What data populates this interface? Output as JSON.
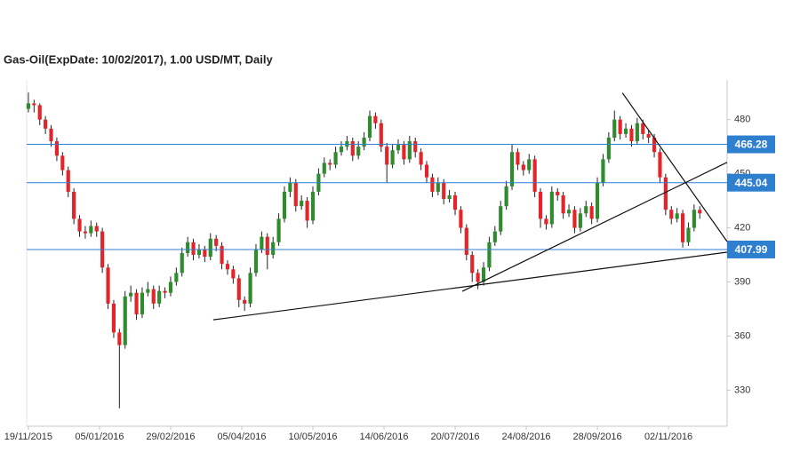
{
  "chart_data": {
    "type": "candlestick",
    "title": "Gas-Oil(ExpDate: 10/02/2017), 1.00 USD/MT, Daily",
    "up_color": "#2e8b2e",
    "down_color": "#e3242b",
    "ylim": [
      310,
      502
    ],
    "yticks": [
      330,
      360,
      390,
      420,
      450,
      480
    ],
    "xlim": [
      -0.3,
      122.8
    ],
    "xticks": [
      {
        "value": 0,
        "label": "19/11/2015"
      },
      {
        "value": 12.5,
        "label": "05/01/2016"
      },
      {
        "value": 25,
        "label": "29/02/2016"
      },
      {
        "value": 37.5,
        "label": "05/04/2016"
      },
      {
        "value": 50,
        "label": "10/05/2016"
      },
      {
        "value": 62.5,
        "label": "14/06/2016"
      },
      {
        "value": 75,
        "label": "20/07/2016"
      },
      {
        "value": 87.5,
        "label": "24/08/2016"
      },
      {
        "value": 100,
        "label": "28/09/2016"
      },
      {
        "value": 112.5,
        "label": "02/11/2016"
      }
    ],
    "levels": [
      466.28,
      445.04,
      407.99
    ],
    "level_color": "#2f7fcf",
    "trendlines": [
      {
        "start": [
          32.5,
          369
        ],
        "end": [
          122.8,
          406.5
        ]
      },
      {
        "start": [
          76.25,
          384.8
        ],
        "end": [
          122.8,
          456.3
        ]
      },
      {
        "start": [
          104.4,
          494.8
        ],
        "end": [
          122.8,
          412.4
        ]
      }
    ],
    "candles": [
      [
        486,
        495,
        484,
        489
      ],
      [
        489,
        491,
        484,
        488
      ],
      [
        488,
        489,
        477,
        480
      ],
      [
        480,
        482,
        472,
        475
      ],
      [
        475,
        477,
        465,
        468
      ],
      [
        468,
        470,
        457,
        460
      ],
      [
        460,
        462,
        449,
        452
      ],
      [
        452,
        454,
        437,
        440
      ],
      [
        440,
        442,
        422,
        425
      ],
      [
        425,
        427,
        415,
        418
      ],
      [
        418,
        421,
        414,
        417
      ],
      [
        417,
        424,
        415,
        421
      ],
      [
        421,
        423,
        415,
        418
      ],
      [
        418,
        420,
        395,
        398
      ],
      [
        398,
        400,
        375,
        378
      ],
      [
        378,
        380,
        359,
        362
      ],
      [
        362,
        364,
        320,
        355
      ],
      [
        355,
        385,
        353,
        382
      ],
      [
        382,
        388,
        379,
        384
      ],
      [
        384,
        386,
        369,
        372
      ],
      [
        372,
        387,
        370,
        384
      ],
      [
        384,
        390,
        382,
        386
      ],
      [
        386,
        388,
        375,
        378
      ],
      [
        378,
        388,
        376,
        385
      ],
      [
        385,
        387,
        381,
        384
      ],
      [
        384,
        393,
        382,
        390
      ],
      [
        390,
        398,
        388,
        395
      ],
      [
        395,
        409,
        393,
        406
      ],
      [
        406,
        415,
        404,
        412
      ],
      [
        412,
        414,
        402,
        405
      ],
      [
        405,
        411,
        403,
        408
      ],
      [
        408,
        410,
        401,
        404
      ],
      [
        404,
        417,
        402,
        414
      ],
      [
        414,
        416,
        407,
        410
      ],
      [
        410,
        412,
        397,
        400
      ],
      [
        400,
        402,
        394,
        397
      ],
      [
        397,
        399,
        389,
        392
      ],
      [
        392,
        394,
        376,
        380
      ],
      [
        380,
        382,
        374,
        378
      ],
      [
        378,
        398,
        376,
        395
      ],
      [
        395,
        411,
        393,
        408
      ],
      [
        408,
        418,
        406,
        415
      ],
      [
        415,
        417,
        397,
        405
      ],
      [
        405,
        415,
        403,
        412
      ],
      [
        412,
        428,
        410,
        425
      ],
      [
        425,
        443,
        423,
        440
      ],
      [
        440,
        448,
        437,
        445
      ],
      [
        445,
        447,
        429,
        432
      ],
      [
        432,
        438,
        430,
        435
      ],
      [
        435,
        437,
        420,
        424
      ],
      [
        424,
        443,
        422,
        440
      ],
      [
        440,
        453,
        438,
        450
      ],
      [
        450,
        459,
        448,
        456
      ],
      [
        456,
        458,
        452,
        455
      ],
      [
        455,
        465,
        453,
        462
      ],
      [
        462,
        468,
        460,
        465
      ],
      [
        465,
        471,
        463,
        468
      ],
      [
        468,
        470,
        457,
        460
      ],
      [
        460,
        468,
        458,
        465
      ],
      [
        465,
        473,
        463,
        470
      ],
      [
        470,
        485,
        468,
        482
      ],
      [
        482,
        484,
        475,
        478
      ],
      [
        478,
        480,
        462,
        465
      ],
      [
        465,
        467,
        445,
        455
      ],
      [
        455,
        466,
        453,
        463
      ],
      [
        463,
        469,
        461,
        466
      ],
      [
        466,
        468,
        455,
        458
      ],
      [
        458,
        471,
        456,
        468
      ],
      [
        468,
        470,
        459,
        462
      ],
      [
        462,
        464,
        452,
        455
      ],
      [
        455,
        457,
        445,
        448
      ],
      [
        448,
        450,
        437,
        440
      ],
      [
        440,
        448,
        438,
        445
      ],
      [
        445,
        447,
        433,
        436
      ],
      [
        436,
        441,
        434,
        438
      ],
      [
        438,
        440,
        427,
        430
      ],
      [
        430,
        432,
        417,
        420
      ],
      [
        420,
        422,
        402,
        405
      ],
      [
        405,
        407,
        390,
        395
      ],
      [
        395,
        397,
        386,
        390
      ],
      [
        390,
        401,
        388,
        398
      ],
      [
        398,
        415,
        396,
        412
      ],
      [
        412,
        421,
        410,
        418
      ],
      [
        418,
        435,
        416,
        432
      ],
      [
        432,
        446,
        430,
        443
      ],
      [
        443,
        466,
        441,
        462
      ],
      [
        462,
        464,
        452,
        455
      ],
      [
        455,
        457,
        449,
        452
      ],
      [
        452,
        461,
        450,
        458
      ],
      [
        458,
        460,
        437,
        440
      ],
      [
        440,
        442,
        420,
        425
      ],
      [
        425,
        427,
        419,
        422
      ],
      [
        422,
        443,
        420,
        440
      ],
      [
        440,
        442,
        435,
        438
      ],
      [
        438,
        440,
        425,
        428
      ],
      [
        428,
        433,
        426,
        430
      ],
      [
        430,
        432,
        417,
        420
      ],
      [
        420,
        431,
        418,
        428
      ],
      [
        428,
        435,
        426,
        432
      ],
      [
        432,
        434,
        422,
        425
      ],
      [
        425,
        448,
        423,
        445
      ],
      [
        445,
        461,
        443,
        458
      ],
      [
        458,
        473,
        456,
        470
      ],
      [
        470,
        485,
        468,
        480
      ],
      [
        480,
        482,
        469,
        472
      ],
      [
        472,
        478,
        470,
        475
      ],
      [
        475,
        477,
        465,
        468
      ],
      [
        468,
        481,
        466,
        478
      ],
      [
        478,
        480,
        469,
        472
      ],
      [
        472,
        474,
        467,
        470
      ],
      [
        470,
        472,
        459,
        462
      ],
      [
        462,
        464,
        445,
        448
      ],
      [
        448,
        450,
        427,
        430
      ],
      [
        430,
        432,
        422,
        425
      ],
      [
        425,
        431,
        423,
        428
      ],
      [
        428,
        430,
        409,
        412
      ],
      [
        412,
        423,
        410,
        420
      ],
      [
        420,
        433,
        418,
        430
      ],
      [
        430,
        432,
        425,
        428
      ]
    ]
  }
}
